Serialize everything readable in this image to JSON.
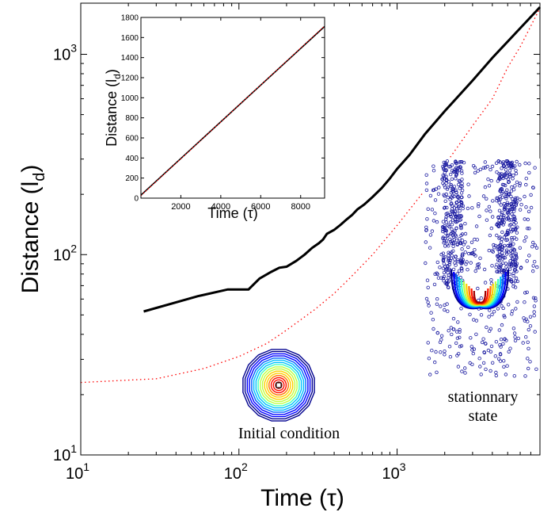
{
  "chart_data": [
    {
      "type": "line",
      "scale": "log-log",
      "xlabel": "Time (τ)",
      "ylabel": "Distance (l",
      "ylabel_sub": "d",
      "ylabel_close": ")",
      "xlim": [
        10,
        8000
      ],
      "ylim": [
        10,
        1800
      ],
      "x_ticks": [
        {
          "base": "10",
          "exp": "1"
        },
        {
          "base": "10",
          "exp": "2"
        },
        {
          "base": "10",
          "exp": "3"
        }
      ],
      "y_ticks": [
        {
          "base": "10",
          "exp": "1"
        },
        {
          "base": "10",
          "exp": "2"
        },
        {
          "base": "10",
          "exp": "3"
        }
      ],
      "series": [
        {
          "style": "solid",
          "color": "#000000",
          "x": [
            25,
            55,
            85,
            115,
            135,
            160,
            180,
            200,
            230,
            260,
            290,
            320,
            340,
            360,
            400,
            440,
            480,
            520,
            560,
            620,
            700,
            800,
            900,
            1000,
            1200,
            1500,
            2000,
            3000,
            4000,
            6000,
            8000
          ],
          "y": [
            52,
            62,
            67,
            67,
            76,
            82,
            86,
            87,
            93,
            100,
            108,
            114,
            119,
            127,
            133,
            141,
            150,
            158,
            168,
            178,
            194,
            215,
            240,
            268,
            315,
            400,
            520,
            740,
            960,
            1350,
            1720
          ]
        },
        {
          "style": "dotted",
          "color": "#ff0000",
          "x": [
            10,
            30,
            60,
            100,
            150,
            200,
            300,
            400,
            500,
            700,
            1000,
            1500,
            2000,
            3000,
            4000,
            5000,
            6000,
            8000
          ],
          "y": [
            23,
            24,
            27,
            31,
            36,
            42,
            53,
            64,
            76,
            100,
            140,
            210,
            280,
            440,
            600,
            860,
            1090,
            1700
          ]
        }
      ],
      "annotations": [
        {
          "text": "Initial condition"
        },
        {
          "text": "stationnary"
        },
        {
          "text": "state"
        }
      ]
    },
    {
      "type": "line",
      "xlabel": "Time (τ)",
      "ylabel": "Distance (l",
      "ylabel_sub": "d",
      "ylabel_close": ")",
      "xlim": [
        0,
        9200
      ],
      "ylim": [
        0,
        1800
      ],
      "x_ticks": [
        "2000",
        "4000",
        "6000",
        "8000"
      ],
      "y_ticks": [
        "0",
        "200",
        "400",
        "600",
        "800",
        "1000",
        "1200",
        "1400",
        "1600",
        "1800"
      ],
      "series": [
        {
          "style": "solid",
          "color": "#000000",
          "x": [
            0,
            9200
          ],
          "y": [
            30,
            1710
          ]
        },
        {
          "style": "dotted",
          "color": "#ff0000",
          "x": [
            0,
            9200
          ],
          "y": [
            25,
            1715
          ]
        }
      ]
    }
  ],
  "colors": {
    "contour_palette": [
      "#00008f",
      "#0000ff",
      "#0060ff",
      "#00c0ff",
      "#40ffbf",
      "#bfff40",
      "#ffd000",
      "#ff7000",
      "#ff1000",
      "#a00000"
    ]
  }
}
